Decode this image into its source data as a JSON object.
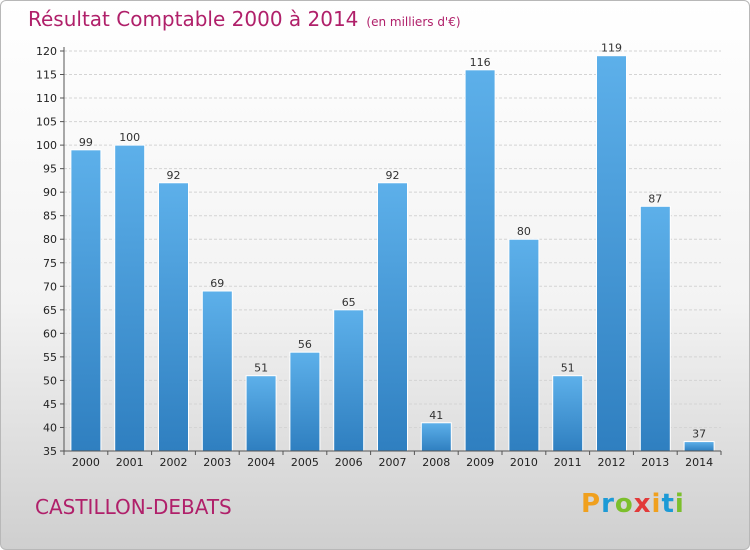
{
  "title": "Résultat Comptable 2000 à 2014",
  "subtitle": "(en milliers d'€)",
  "commune": "CASTILLON-DEBATS",
  "brand": {
    "letters": [
      "P",
      "r",
      "o",
      "x",
      "i",
      "t",
      "i"
    ],
    "colors": [
      "#f0a01e",
      "#1c9ad6",
      "#7cbf2c",
      "#e23a3a",
      "#f0a01e",
      "#1c9ad6",
      "#7cbf2c"
    ]
  },
  "colors": {
    "bar": "#4fa3e0",
    "bar_dark": "#2f7fc0",
    "accent": "#b0206a"
  },
  "chart_data": {
    "type": "bar",
    "categories": [
      "2000",
      "2001",
      "2002",
      "2003",
      "2004",
      "2005",
      "2006",
      "2007",
      "2008",
      "2009",
      "2010",
      "2011",
      "2012",
      "2013",
      "2014"
    ],
    "values": [
      99,
      100,
      92,
      69,
      51,
      56,
      65,
      92,
      41,
      116,
      80,
      51,
      119,
      87,
      37
    ],
    "ylim": [
      35,
      120
    ],
    "yticks": [
      35,
      40,
      45,
      50,
      55,
      60,
      65,
      70,
      75,
      80,
      85,
      90,
      95,
      100,
      105,
      110,
      115,
      120
    ],
    "grid": true
  }
}
